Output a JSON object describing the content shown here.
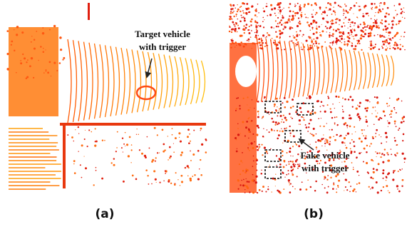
{
  "panels": [
    {
      "annotation": [
        "Target vehicle",
        "with trigger"
      ],
      "caption": "(a)"
    },
    {
      "annotation": [
        "Fake vehicle",
        "with trigger"
      ],
      "caption": "(b)"
    }
  ]
}
